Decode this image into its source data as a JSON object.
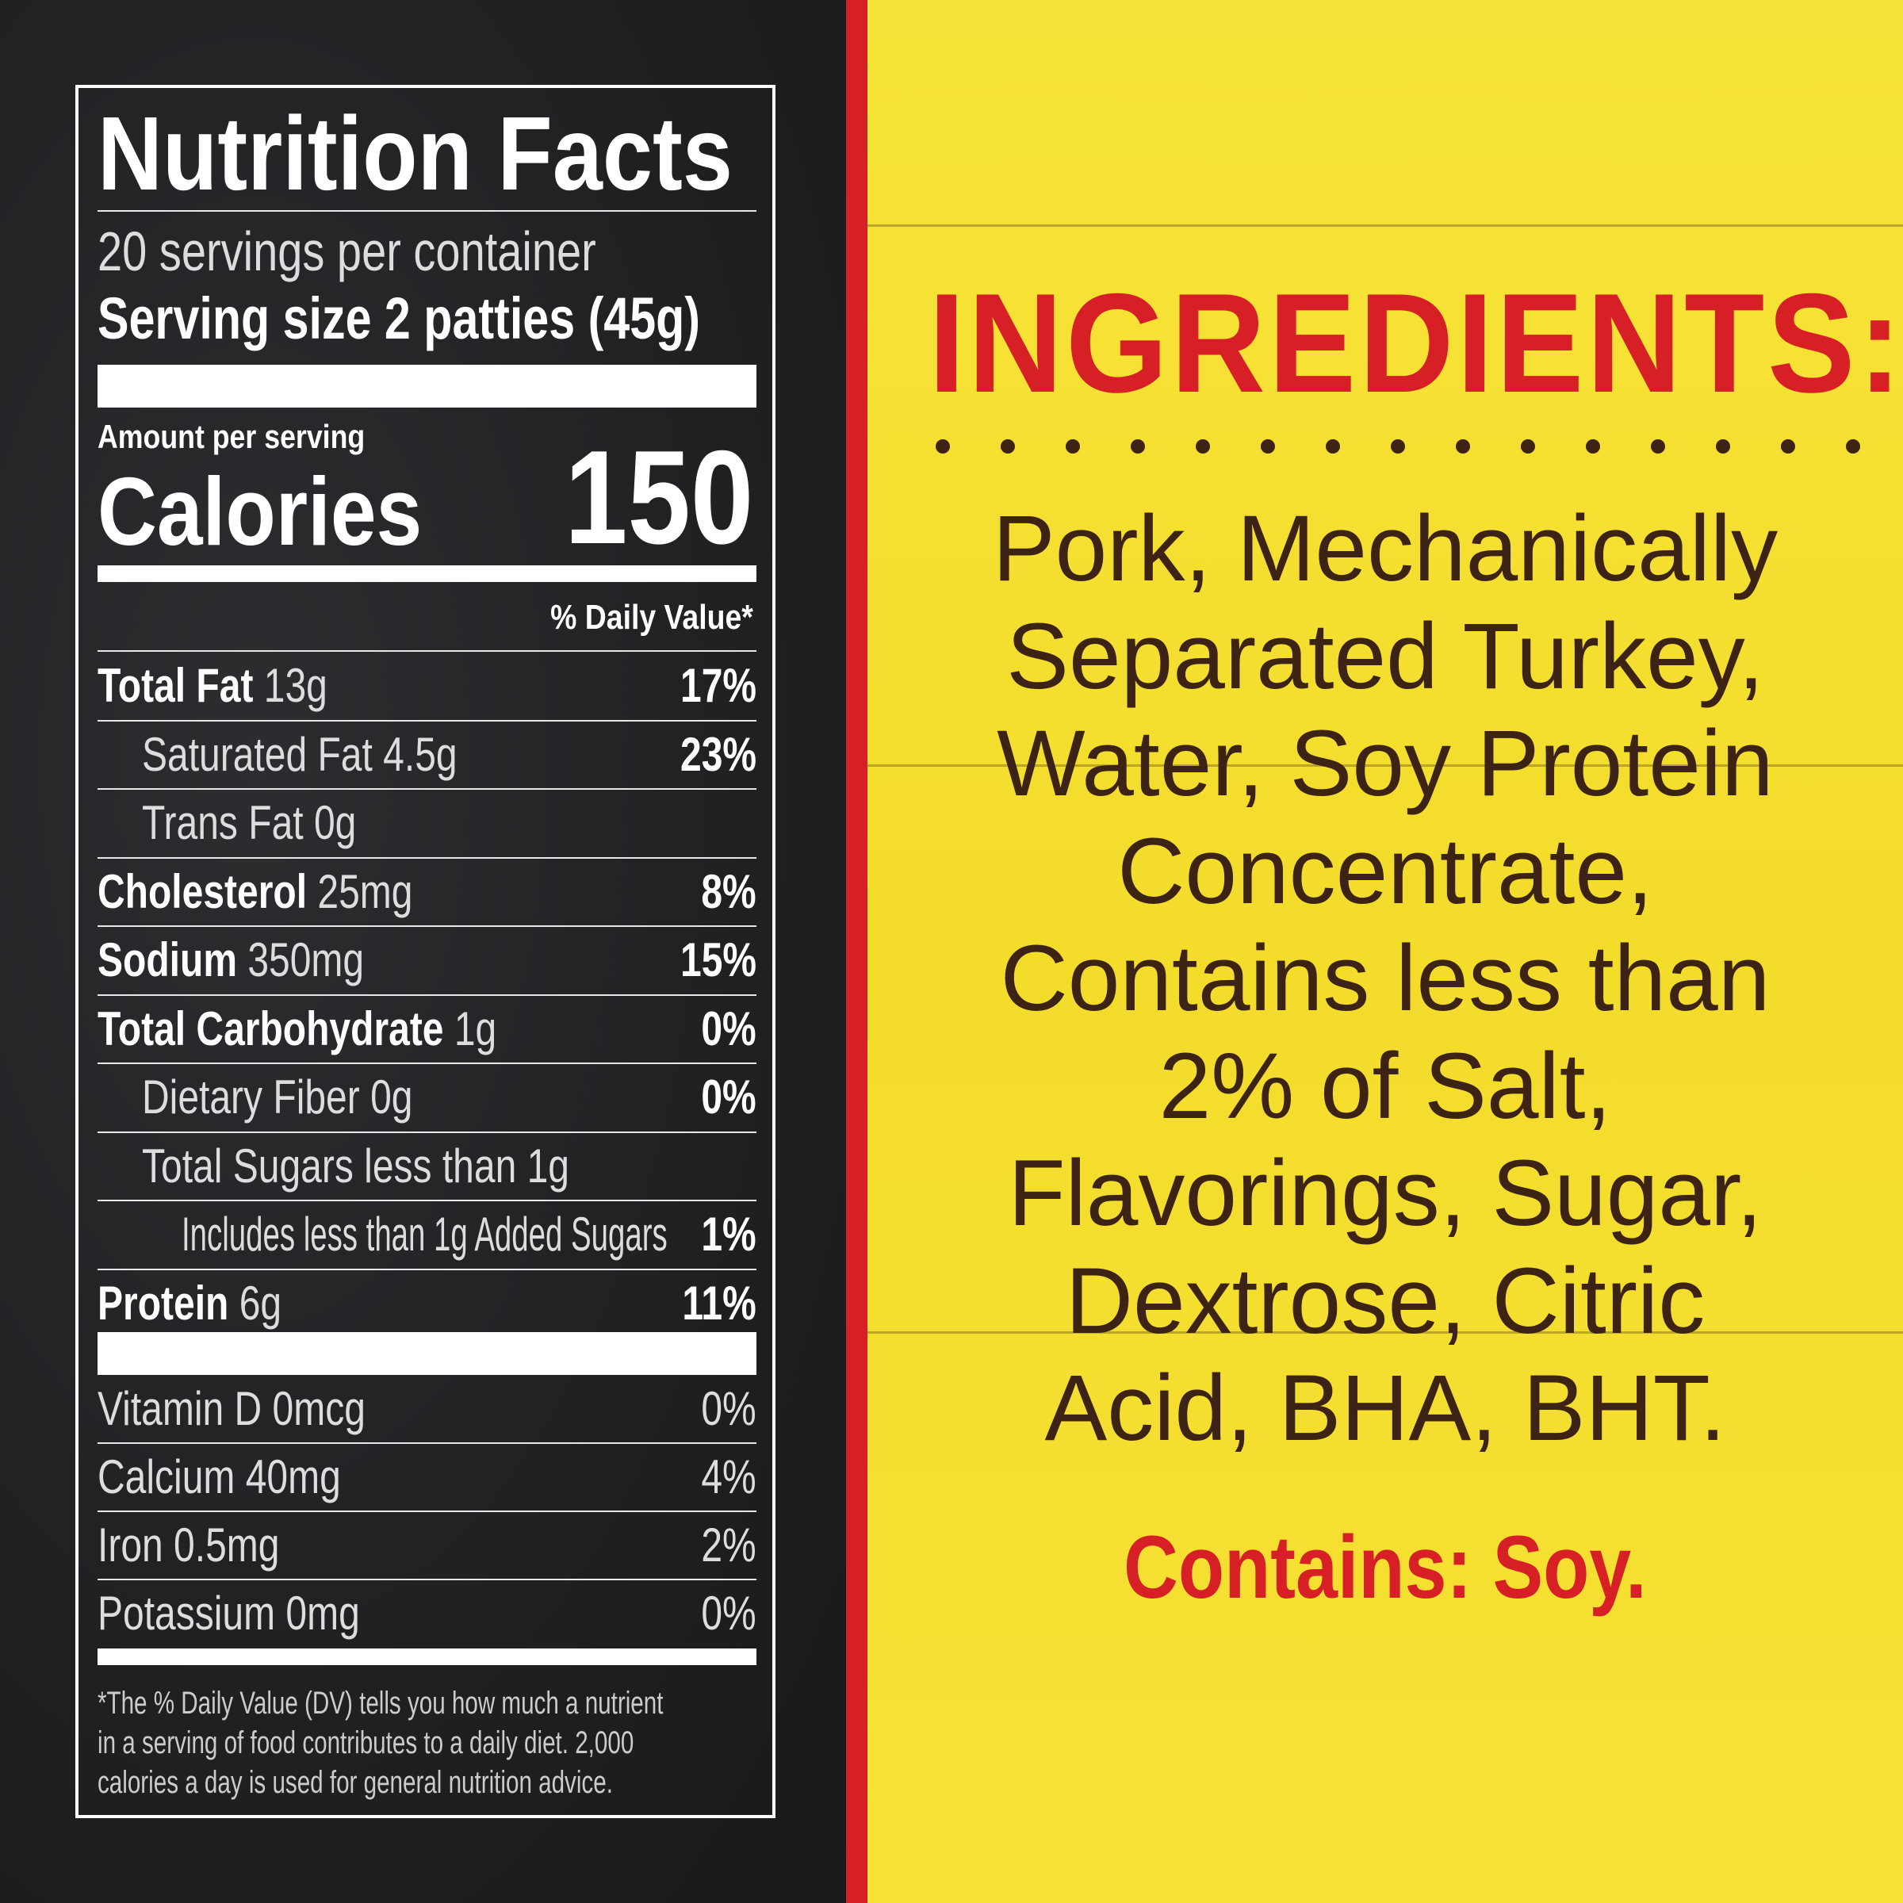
{
  "nutrition": {
    "title": "Nutrition Facts",
    "servings": "20 servings per container",
    "serving_size": "Serving size 2 patties (45g)",
    "amount_per_serving": "Amount per serving",
    "calories_label": "Calories",
    "calories_value": "150",
    "dv_header": "% Daily Value*",
    "rows": [
      {
        "label": "Total Fat",
        "amount": "13g",
        "pct": "17%"
      },
      {
        "label": "Saturated Fat 4.5g",
        "amount": "",
        "pct": "23%"
      },
      {
        "label": "Trans Fat 0g",
        "amount": "",
        "pct": ""
      },
      {
        "label": "Cholesterol",
        "amount": "25mg",
        "pct": "8%"
      },
      {
        "label": "Sodium",
        "amount": "350mg",
        "pct": "15%"
      },
      {
        "label": "Total Carbohydrate",
        "amount": "1g",
        "pct": "0%"
      },
      {
        "label": "Dietary Fiber 0g",
        "amount": "",
        "pct": "0%"
      },
      {
        "label": "Total Sugars less than 1g",
        "amount": "",
        "pct": ""
      },
      {
        "label": "Includes less than 1g Added Sugars",
        "amount": "",
        "pct": "1%"
      },
      {
        "label": "Protein",
        "amount": "6g",
        "pct": "11%"
      }
    ],
    "vitamins": [
      {
        "label": "Vitamin D 0mcg",
        "pct": "0%"
      },
      {
        "label": "Calcium 40mg",
        "pct": "4%"
      },
      {
        "label": "Iron 0.5mg",
        "pct": "2%"
      },
      {
        "label": "Potassium 0mg",
        "pct": "0%"
      }
    ],
    "footnote": [
      "*The % Daily Value (DV) tells you how much a nutrient",
      "in a serving of food contributes to a daily diet. 2,000",
      "calories a day is used for general nutrition advice."
    ]
  },
  "ingredients": {
    "title": "INGREDIENTS:",
    "lines": [
      "Pork, Mechanically",
      "Separated Turkey,",
      "Water, Soy Protein",
      "Concentrate,",
      "Contains less than",
      "2% of Salt,",
      "Flavorings, Sugar,",
      "Dextrose, Citric",
      "Acid, BHA, BHT."
    ],
    "allergen": "Contains: Soy."
  },
  "colors": {
    "red": "#d71f26",
    "yellow": "#f5e02e",
    "brown": "#3d2314",
    "chalkboard": "#1f2022"
  }
}
